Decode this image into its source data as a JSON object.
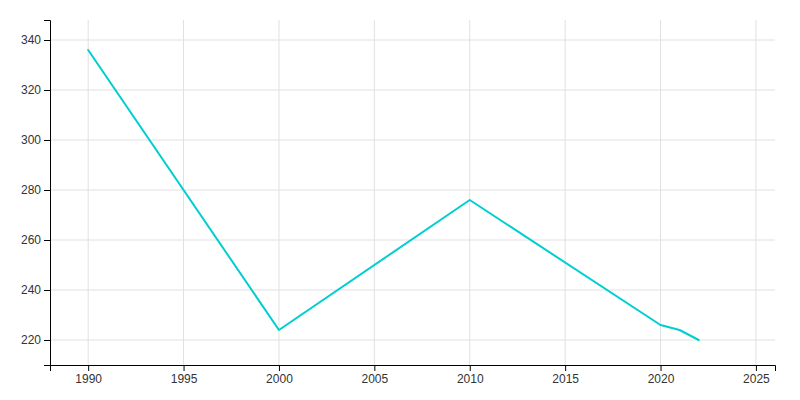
{
  "chart_data": {
    "type": "line",
    "x": [
      1990,
      2000,
      2010,
      2020,
      2021,
      2022
    ],
    "values": [
      336,
      224,
      276,
      226,
      224,
      220
    ],
    "color": "#00CED1",
    "xlim": [
      1988,
      2026
    ],
    "ylim": [
      210,
      348
    ],
    "xticks": [
      1990,
      1995,
      2000,
      2005,
      2010,
      2015,
      2020,
      2025
    ],
    "yticks": [
      220,
      240,
      260,
      280,
      300,
      320,
      340
    ],
    "grid": true
  }
}
